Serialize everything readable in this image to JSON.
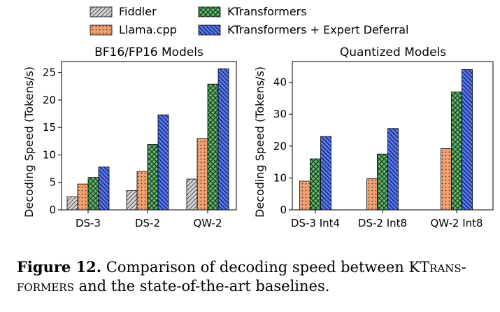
{
  "legend": [
    {
      "label": "Fiddler",
      "color": "#d3d3d3",
      "pattern": "diag"
    },
    {
      "label": "Llama.cpp",
      "color": "#f4a16f",
      "pattern": "dots"
    },
    {
      "label": "KTransformers",
      "color": "#5cb86a",
      "pattern": "cross"
    },
    {
      "label": "KTransformers + Expert Deferral",
      "color": "#5876e8",
      "pattern": "back"
    }
  ],
  "chart_data": [
    {
      "type": "bar",
      "title": "BF16/FP16 Models",
      "ylabel": "Decoding Speed (Tokens/s)",
      "ylim": [
        0,
        27
      ],
      "yticks": [
        0,
        5,
        10,
        15,
        20,
        25
      ],
      "categories": [
        "DS-3",
        "DS-2",
        "QW-2"
      ],
      "series": [
        {
          "name": "Fiddler",
          "values": [
            2.4,
            3.5,
            5.6
          ]
        },
        {
          "name": "Llama.cpp",
          "values": [
            4.7,
            7.0,
            13.0
          ]
        },
        {
          "name": "KTransformers",
          "values": [
            5.9,
            11.9,
            22.9
          ]
        },
        {
          "name": "KTransformers + Expert Deferral",
          "values": [
            7.8,
            17.3,
            25.7
          ]
        }
      ]
    },
    {
      "type": "bar",
      "title": "Quantized Models",
      "ylabel": "Decoding Speed (Tokens/s)",
      "ylim": [
        0,
        46.5
      ],
      "yticks": [
        0,
        10,
        20,
        30,
        40
      ],
      "categories": [
        "DS-3 Int4",
        "DS-2 Int8",
        "QW-2 Int8"
      ],
      "series": [
        {
          "name": "Llama.cpp",
          "values": [
            9.0,
            9.8,
            19.2
          ]
        },
        {
          "name": "KTransformers",
          "values": [
            16.0,
            17.5,
            37.0
          ]
        },
        {
          "name": "KTransformers + Expert Deferral",
          "values": [
            23.0,
            25.5,
            44.0
          ]
        }
      ]
    }
  ],
  "caption": {
    "lead": "Figure 12.",
    "text_a": " Comparison of decoding speed between KT",
    "text_b": "rans-formers",
    "text_c": " and the state-of-the-art baselines."
  }
}
